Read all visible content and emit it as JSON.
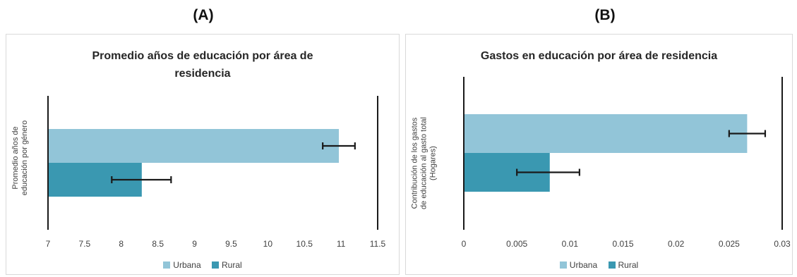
{
  "panels": [
    {
      "letter": "(A)"
    },
    {
      "letter": "(B)"
    }
  ],
  "chart_data": [
    {
      "type": "bar",
      "orientation": "horizontal",
      "title": "Promedio años de educación por área de residencia",
      "title_lines": [
        "Promedio años de educación por área de",
        "residencia"
      ],
      "ylabel": "Promedio años de educación por género",
      "ylabel_lines": [
        "Promedio años de",
        "educación por género"
      ],
      "xlim": [
        7,
        11.5
      ],
      "xticks": [
        "7",
        "7.5",
        "8",
        "8.5",
        "9",
        "9.5",
        "10",
        "10.5",
        "11",
        "11.5"
      ],
      "series": [
        {
          "name": "Urbana",
          "color": "#92c5d8",
          "value": 10.97,
          "error_low": 10.75,
          "error_high": 11.19
        },
        {
          "name": "Rural",
          "color": "#3a98b1",
          "value": 8.28,
          "error_low": 7.87,
          "error_high": 8.68
        }
      ],
      "legend": [
        "Urbana",
        "Rural"
      ],
      "legend_position": "bottom"
    },
    {
      "type": "bar",
      "orientation": "horizontal",
      "title": "Gastos en educación por área de residencia",
      "title_lines": [
        "Gastos en educación por área de residencia"
      ],
      "ylabel": "Contribución de los gastos de educación al gasto total (Hogares)",
      "ylabel_lines": [
        "Contribución de los gastos",
        "de educación al gasto total",
        "(Hogares)"
      ],
      "xlim": [
        0,
        0.03
      ],
      "xticks": [
        "0",
        "0.005",
        "0.01",
        "0.015",
        "0.02",
        "0.025",
        "0.03"
      ],
      "series": [
        {
          "name": "Urbana",
          "color": "#92c5d8",
          "value": 0.0267,
          "error_low": 0.025,
          "error_high": 0.0284
        },
        {
          "name": "Rural",
          "color": "#3a98b1",
          "value": 0.0081,
          "error_low": 0.005,
          "error_high": 0.0109
        }
      ],
      "legend": [
        "Urbana",
        "Rural"
      ],
      "legend_position": "bottom"
    }
  ]
}
